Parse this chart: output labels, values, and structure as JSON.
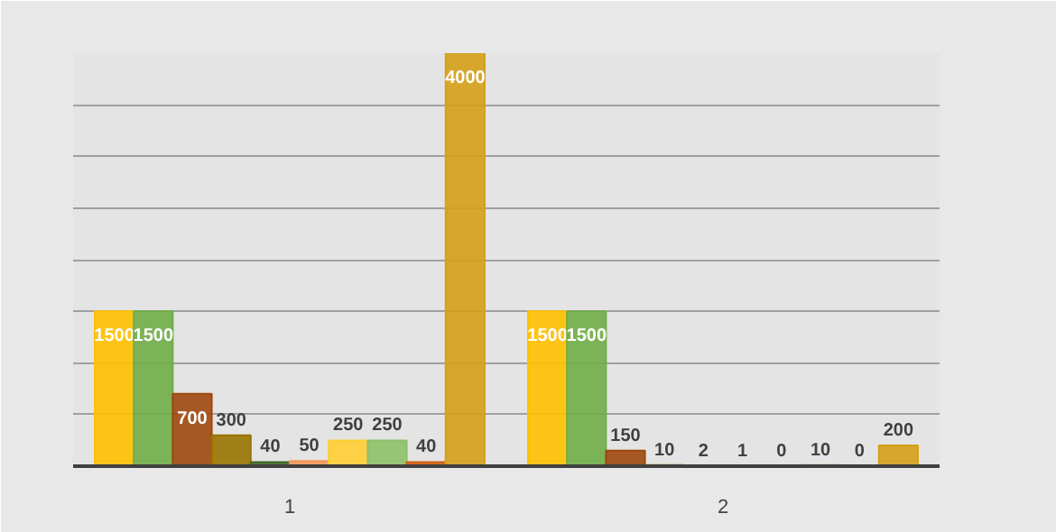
{
  "chart_data": {
    "type": "bar",
    "categories": [
      "1",
      "2"
    ],
    "series": [
      {
        "color": "#ffc000",
        "values": [
          1500,
          1500
        ]
      },
      {
        "color": "#70ad47",
        "values": [
          1500,
          1500
        ]
      },
      {
        "color": "#9e480e",
        "values": [
          700,
          150
        ]
      },
      {
        "color": "#997300",
        "values": [
          300,
          10
        ]
      },
      {
        "color": "#43682b",
        "values": [
          40,
          2
        ]
      },
      {
        "color": "#f1975a",
        "values": [
          50,
          1
        ]
      },
      {
        "color": "#ffcd33",
        "values": [
          250,
          0
        ]
      },
      {
        "color": "#8cc168",
        "values": [
          250,
          10
        ]
      },
      {
        "color": "#d26012",
        "values": [
          40,
          0
        ]
      },
      {
        "color": "#d4a017",
        "values": [
          4000,
          200
        ]
      }
    ],
    "ylim": [
      0,
      4000
    ],
    "yticks": [
      {
        "value": 0,
        "label": null
      },
      {
        "value": 500,
        "label": null
      },
      {
        "value": 1000,
        "label": null
      },
      {
        "value": 1500,
        "label": null
      },
      {
        "value": 2000,
        "label": null
      },
      {
        "value": 2500,
        "label": null
      },
      {
        "value": 3000,
        "label": null
      },
      {
        "value": 3500,
        "label": null
      },
      {
        "value": 4000,
        "label": null
      }
    ],
    "tick_labels": "x",
    "grid": "y",
    "data_labels": true,
    "legend": false
  }
}
